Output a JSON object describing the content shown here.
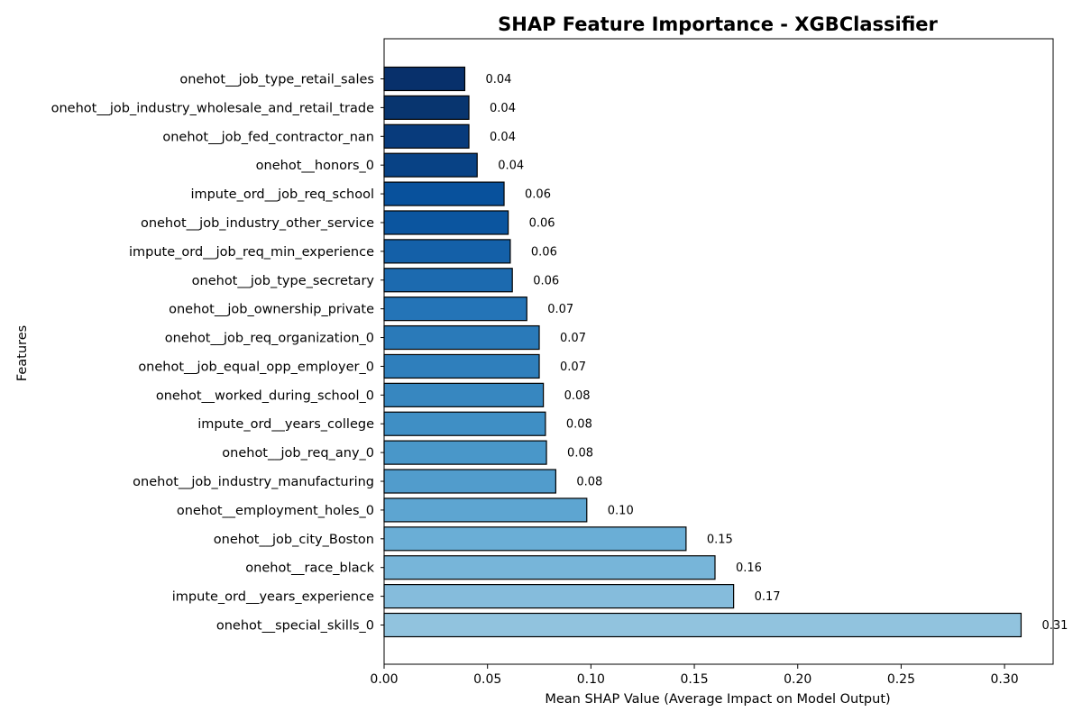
{
  "chart_data": {
    "type": "bar",
    "orientation": "horizontal",
    "title": "SHAP Feature Importance - XGBClassifier",
    "xlabel": "Mean SHAP Value (Average Impact on Model Output)",
    "ylabel": "Features",
    "xlim": [
      0,
      0.3235
    ],
    "xticks": [
      "0.00",
      "0.05",
      "0.10",
      "0.15",
      "0.20",
      "0.25",
      "0.30"
    ],
    "grid": false,
    "colormap": "Blues",
    "bar_edge_color": "#000000",
    "categories": [
      "onehot__job_type_retail_sales",
      "onehot__job_industry_wholesale_and_retail_trade",
      "onehot__job_fed_contractor_nan",
      "onehot__honors_0",
      "impute_ord__job_req_school",
      "onehot__job_industry_other_service",
      "impute_ord__job_req_min_experience",
      "onehot__job_type_secretary",
      "onehot__job_ownership_private",
      "onehot__job_req_organization_0",
      "onehot__job_equal_opp_employer_0",
      "onehot__worked_during_school_0",
      "impute_ord__years_college",
      "onehot__job_req_any_0",
      "onehot__job_industry_manufacturing",
      "onehot__employment_holes_0",
      "onehot__job_city_Boston",
      "onehot__race_black",
      "impute_ord__years_experience",
      "onehot__special_skills_0"
    ],
    "values": [
      0.039,
      0.041,
      0.041,
      0.045,
      0.058,
      0.06,
      0.061,
      0.062,
      0.069,
      0.075,
      0.075,
      0.077,
      0.078,
      0.0785,
      0.083,
      0.098,
      0.146,
      0.16,
      0.169,
      0.308
    ],
    "value_labels": [
      "0.04",
      "0.04",
      "0.04",
      "0.04",
      "0.06",
      "0.06",
      "0.06",
      "0.06",
      "0.07",
      "0.07",
      "0.07",
      "0.08",
      "0.08",
      "0.08",
      "0.08",
      "0.10",
      "0.15",
      "0.16",
      "0.17",
      "0.31"
    ],
    "colors": [
      "#08306b",
      "#08356f",
      "#083b7c",
      "#084285",
      "#08519c",
      "#0b559f",
      "#1460a8",
      "#1c6aaf",
      "#2474b7",
      "#2a7ab9",
      "#2f7fbc",
      "#3787c0",
      "#3f8fc5",
      "#4997c9",
      "#519ccc",
      "#5da5d1",
      "#6aaed6",
      "#77b5d9",
      "#85bcdc",
      "#91c3de"
    ]
  }
}
